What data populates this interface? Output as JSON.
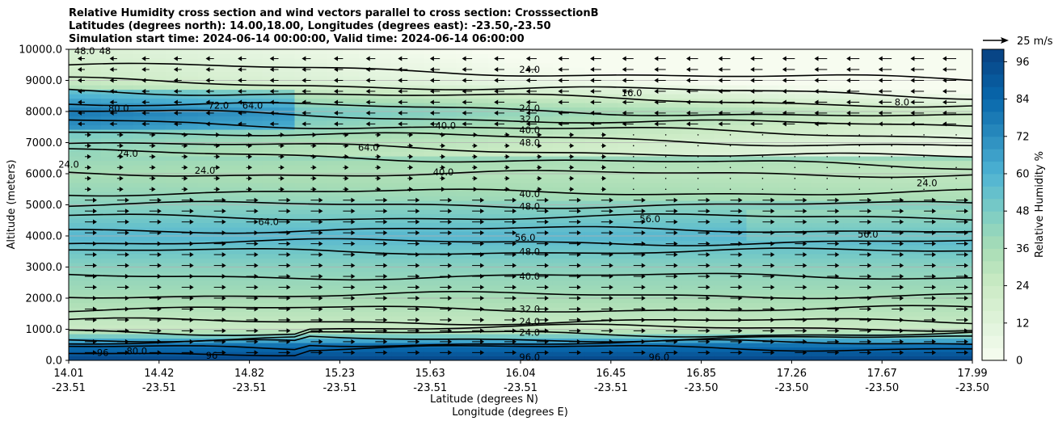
{
  "title": {
    "line1": "Relative Humidity cross section and wind vectors parallel to cross section: CrosssectionB",
    "line2": "Latitudes (degrees north): 14.00,18.00, Longitudes (degrees east): -23.50,-23.50",
    "line3": "Simulation start time: 2024-06-14 00:00:00, Valid time: 2024-06-14 06:00:00"
  },
  "colors": {
    "rh_low": "#f7fcf0",
    "rh_mid": "#a8ddb5",
    "rh_high": "#4eb3d3",
    "rh_max": "#084081",
    "contour": "#000000",
    "arrow": "#000000",
    "grid": "#b0b0b0"
  },
  "chart_data": {
    "type": "heatmap",
    "xlabel": "Latitude (degrees N)",
    "xlabel2": "Longitude (degrees E)",
    "ylabel": "Altitude (meters)",
    "ylim": [
      0,
      10000
    ],
    "xlim": [
      14.01,
      17.99
    ],
    "y_ticks": [
      "0.0",
      "1000.0",
      "2000.0",
      "3000.0",
      "4000.0",
      "5000.0",
      "6000.0",
      "7000.0",
      "8000.0",
      "9000.0",
      "10000.0"
    ],
    "y_tick_values": [
      0,
      1000,
      2000,
      3000,
      4000,
      5000,
      6000,
      7000,
      8000,
      9000,
      10000
    ],
    "x_ticks": [
      {
        "lat": "14.01",
        "lon": "-23.51"
      },
      {
        "lat": "14.42",
        "lon": "-23.51"
      },
      {
        "lat": "14.82",
        "lon": "-23.51"
      },
      {
        "lat": "15.23",
        "lon": "-23.51"
      },
      {
        "lat": "15.63",
        "lon": "-23.51"
      },
      {
        "lat": "16.04",
        "lon": "-23.51"
      },
      {
        "lat": "16.45",
        "lon": "-23.51"
      },
      {
        "lat": "16.85",
        "lon": "-23.50"
      },
      {
        "lat": "17.26",
        "lon": "-23.50"
      },
      {
        "lat": "17.67",
        "lon": "-23.50"
      },
      {
        "lat": "17.99",
        "lon": "-23.50"
      }
    ],
    "grid": "horizontal",
    "colorbar": {
      "label": "Relative Humidity %",
      "range": [
        0,
        100
      ],
      "ticks": [
        "0",
        "12",
        "24",
        "36",
        "48",
        "60",
        "72",
        "84",
        "96"
      ],
      "tick_values": [
        0,
        12,
        24,
        36,
        48,
        60,
        72,
        84,
        96
      ]
    },
    "quiver_key": {
      "label": "25 m/s",
      "speed": 25
    },
    "rh_profile_by_altitude": [
      {
        "alt": 0,
        "rh": 98
      },
      {
        "alt": 500,
        "rh": 80
      },
      {
        "alt": 1000,
        "rh": 24
      },
      {
        "alt": 1500,
        "rh": 30
      },
      {
        "alt": 2000,
        "rh": 36
      },
      {
        "alt": 3000,
        "rh": 44
      },
      {
        "alt": 4000,
        "rh": 58
      },
      {
        "alt": 5000,
        "rh": 44
      },
      {
        "alt": 6000,
        "rh": 36
      },
      {
        "alt": 7000,
        "rh": 44
      },
      {
        "alt": 8000,
        "rh": 60
      },
      {
        "alt": 9000,
        "rh": 24
      },
      {
        "alt": 10000,
        "rh": 16
      }
    ],
    "contour_labels": [
      {
        "text": "48.0",
        "lat": 14.08,
        "alt": 9950
      },
      {
        "text": "48",
        "lat": 14.17,
        "alt": 9950
      },
      {
        "text": "80.0",
        "lat": 14.23,
        "alt": 8100
      },
      {
        "text": "24.0",
        "lat": 14.01,
        "alt": 6300
      },
      {
        "text": "24.0",
        "lat": 14.27,
        "alt": 6650
      },
      {
        "text": "72.0",
        "lat": 14.67,
        "alt": 8200
      },
      {
        "text": "64.0",
        "lat": 14.82,
        "alt": 8200
      },
      {
        "text": "24.0",
        "lat": 14.61,
        "alt": 6100
      },
      {
        "text": "64.0",
        "lat": 14.89,
        "alt": 4450
      },
      {
        "text": "80.0",
        "lat": 14.31,
        "alt": 300
      },
      {
        "text": "96",
        "lat": 14.16,
        "alt": 250
      },
      {
        "text": "96",
        "lat": 14.64,
        "alt": 150
      },
      {
        "text": "24.0",
        "lat": 16.04,
        "alt": 9350
      },
      {
        "text": "16.0",
        "lat": 16.49,
        "alt": 8600
      },
      {
        "text": "8.0",
        "lat": 17.68,
        "alt": 8300
      },
      {
        "text": "24.0",
        "lat": 16.04,
        "alt": 8100
      },
      {
        "text": "32.0",
        "lat": 16.04,
        "alt": 7750
      },
      {
        "text": "40.0",
        "lat": 15.67,
        "alt": 7550
      },
      {
        "text": "40.0",
        "lat": 16.04,
        "alt": 7400
      },
      {
        "text": "48.0",
        "lat": 16.04,
        "alt": 7000
      },
      {
        "text": "64.0",
        "lat": 15.33,
        "alt": 6850
      },
      {
        "text": "40.0",
        "lat": 15.66,
        "alt": 6050
      },
      {
        "text": "40.0",
        "lat": 16.04,
        "alt": 5350
      },
      {
        "text": "48.0",
        "lat": 16.04,
        "alt": 4950
      },
      {
        "text": "56.0",
        "lat": 16.57,
        "alt": 4550
      },
      {
        "text": "24.0",
        "lat": 17.79,
        "alt": 5700
      },
      {
        "text": "56.0",
        "lat": 17.53,
        "alt": 4050
      },
      {
        "text": "56.0",
        "lat": 16.02,
        "alt": 3950
      },
      {
        "text": "48.0",
        "lat": 16.04,
        "alt": 3500
      },
      {
        "text": "40.0",
        "lat": 16.04,
        "alt": 2700
      },
      {
        "text": "32.0",
        "lat": 16.04,
        "alt": 1650
      },
      {
        "text": "24.0",
        "lat": 16.04,
        "alt": 1250
      },
      {
        "text": "24.0",
        "lat": 16.04,
        "alt": 900
      },
      {
        "text": "96.0",
        "lat": 16.04,
        "alt": 100
      },
      {
        "text": "96.0",
        "lat": 16.61,
        "alt": 100
      }
    ],
    "wind_regimes": [
      {
        "alt_range": [
          0,
          3500
        ],
        "u": 10
      },
      {
        "alt_range": [
          3500,
          5200
        ],
        "u": 10
      },
      {
        "alt_range": [
          5200,
          7400
        ],
        "u": 3
      },
      {
        "alt_range": [
          7400,
          10000
        ],
        "u": -10
      }
    ]
  }
}
